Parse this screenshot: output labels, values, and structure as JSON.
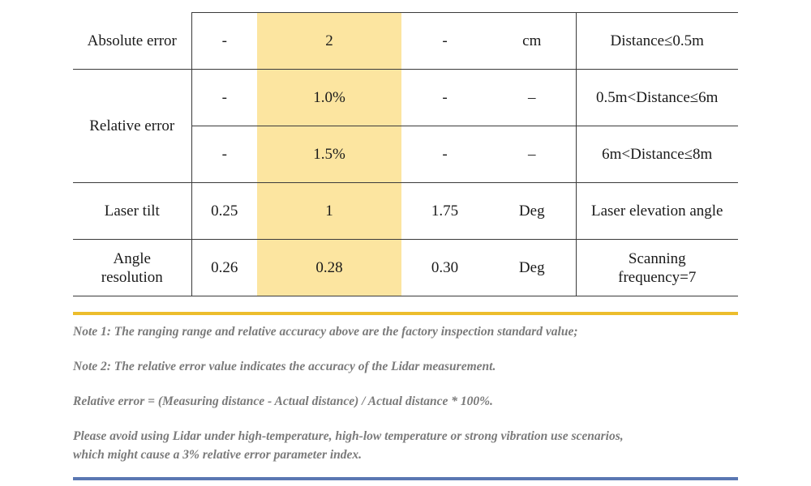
{
  "table": {
    "rows": [
      {
        "param": "Absolute error",
        "min": "-",
        "typ": "2",
        "max": "-",
        "unit": "cm",
        "remark": "Distance≤0.5m"
      },
      {
        "param": "Relative error",
        "min": "-",
        "typ": "1.0%",
        "max": "-",
        "unit": "–",
        "remark": "0.5m<Distance≤6m"
      },
      {
        "min": "-",
        "typ": "1.5%",
        "max": "-",
        "unit": "–",
        "remark": "6m<Distance≤8m"
      },
      {
        "param": "Laser tilt",
        "min": "0.25",
        "typ": "1",
        "max": "1.75",
        "unit": "Deg",
        "remark": "Laser elevation angle"
      },
      {
        "param_line1": "Angle",
        "param_line2": "resolution",
        "min": "0.26",
        "typ": "0.28",
        "max": "0.30",
        "unit": "Deg",
        "remark_line1": "Scanning",
        "remark_line2": "frequency=7"
      }
    ],
    "highlight_color": "#fce5a0"
  },
  "notes": {
    "note1": "Note 1: The ranging range and relative accuracy above are the factory inspection standard value;",
    "note2": "Note 2:  The relative error value indicates the accuracy of the Lidar measurement.",
    "note3": "Relative error = (Measuring distance - Actual distance) / Actual distance * 100%.",
    "note4_line1": "Please avoid using Lidar under high-temperature, high-low temperature or strong vibration use scenarios,",
    "note4_line2": "which might cause a 3% relative error parameter index."
  },
  "colors": {
    "gold_rule": "#ecbd2c",
    "blue_rule": "#5a77b2",
    "note_text": "#7a7a7a"
  }
}
